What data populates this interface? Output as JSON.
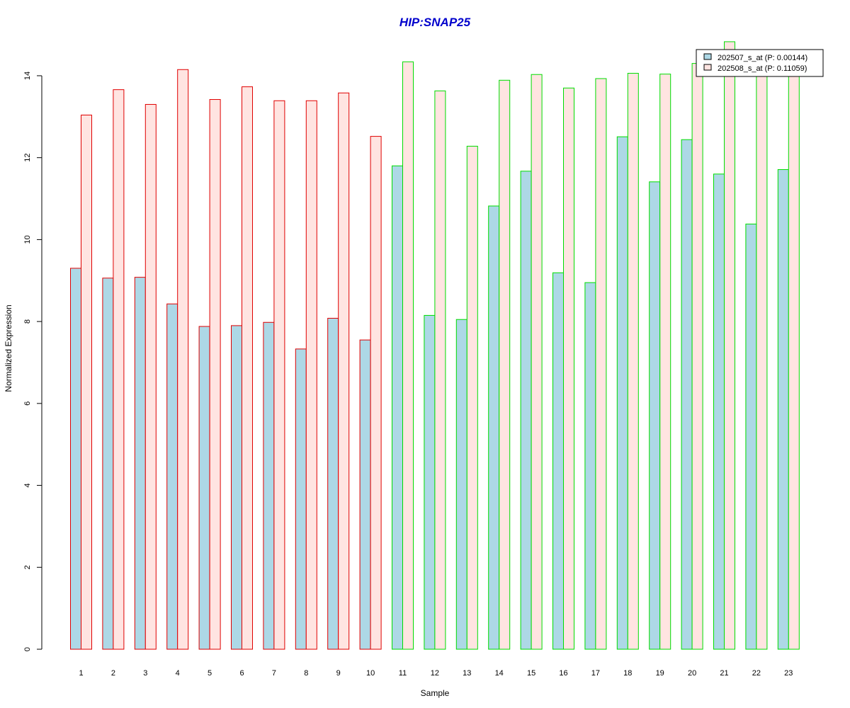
{
  "chart_data": {
    "type": "bar",
    "title": "HIP:SNAP25",
    "title_color": "#0000CC",
    "xlabel": "Sample",
    "ylabel": "Normalized Expression",
    "ylim": [
      0,
      14
    ],
    "yticks": [
      0,
      2,
      4,
      6,
      8,
      10,
      12,
      14
    ],
    "grid": false,
    "legend_position": "top-right",
    "categories": [
      "1",
      "2",
      "3",
      "4",
      "5",
      "6",
      "7",
      "8",
      "9",
      "10",
      "11",
      "12",
      "13",
      "14",
      "15",
      "16",
      "17",
      "18",
      "19",
      "20",
      "21",
      "22",
      "23"
    ],
    "group_border_colors": {
      "red": "#E00000",
      "green": "#00DD00"
    },
    "sample_groups": [
      "red",
      "red",
      "red",
      "red",
      "red",
      "red",
      "red",
      "red",
      "red",
      "red",
      "green",
      "green",
      "green",
      "green",
      "green",
      "green",
      "green",
      "green",
      "green",
      "green",
      "green",
      "green",
      "green"
    ],
    "series": [
      {
        "name": "202507_s_at (P: 0.00144)",
        "fill": "#ADD8E6",
        "values": [
          9.3,
          9.06,
          9.08,
          8.43,
          7.88,
          7.9,
          7.98,
          7.33,
          8.08,
          7.55,
          11.8,
          8.15,
          8.05,
          10.82,
          11.67,
          9.19,
          8.95,
          12.51,
          11.41,
          12.44,
          11.6,
          10.38,
          11.71
        ]
      },
      {
        "name": "202508_s_at (P: 0.11059)",
        "fill": "#FFE4E1",
        "values": [
          13.04,
          13.66,
          13.3,
          14.15,
          13.42,
          13.73,
          13.39,
          13.39,
          13.58,
          12.52,
          14.34,
          13.63,
          12.28,
          13.89,
          14.03,
          13.7,
          13.93,
          14.06,
          14.04,
          14.3,
          14.83,
          14.05,
          14.04
        ]
      }
    ]
  }
}
